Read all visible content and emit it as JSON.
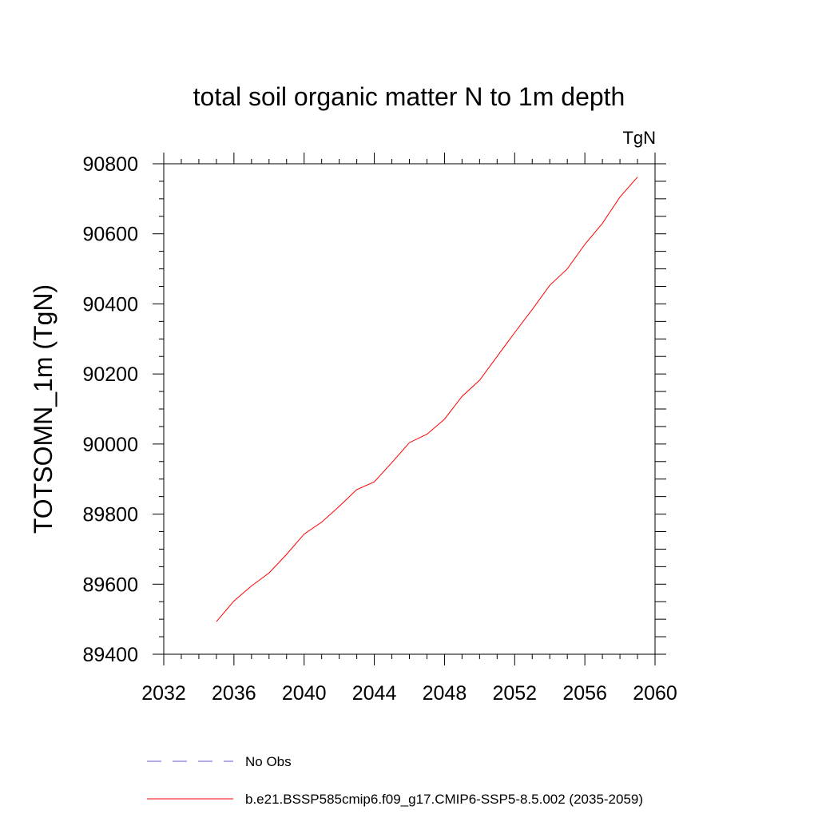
{
  "chart_data": {
    "type": "line",
    "title": "total soil organic matter N to 1m depth",
    "units_label": "TgN",
    "ylabel": "TOTSOMN_1m  (TgN)",
    "xlabel": "",
    "xlim": [
      2032,
      2060
    ],
    "ylim": [
      89400,
      90800
    ],
    "x_ticks": [
      2032,
      2036,
      2040,
      2044,
      2048,
      2052,
      2056,
      2060
    ],
    "y_ticks": [
      89400,
      89600,
      89800,
      90000,
      90200,
      90400,
      90600,
      90800
    ],
    "x_ticks_text": [
      "2032",
      "2036",
      "2040",
      "2044",
      "2048",
      "2052",
      "2056",
      "2060"
    ],
    "y_ticks_text": [
      "89400",
      "89600",
      "89800",
      "90000",
      "90200",
      "90400",
      "90600",
      "90800"
    ],
    "x_minor_step": 1,
    "y_minor_step": 50,
    "grid": false,
    "legend_position": "bottom",
    "series": [
      {
        "name": "b.e21.BSSP585cmip6.f09_g17.CMIP6-SSP5-8.5.002 (2035-2059)",
        "color": "#ff0000",
        "style": "solid",
        "x": [
          2035,
          2036,
          2037,
          2038,
          2039,
          2040,
          2041,
          2042,
          2043,
          2044,
          2045,
          2046,
          2047,
          2048,
          2049,
          2050,
          2051,
          2052,
          2053,
          2054,
          2055,
          2056,
          2057,
          2058,
          2059
        ],
        "values": [
          89493,
          89552,
          89595,
          89632,
          89685,
          89743,
          89777,
          89822,
          89870,
          89892,
          89947,
          90004,
          90028,
          90071,
          90136,
          90182,
          90250,
          90318,
          90384,
          90453,
          90500,
          90570,
          90630,
          90705,
          90762
        ]
      },
      {
        "name": "No Obs",
        "color": "#6a5acd",
        "style": "dashed",
        "x": [],
        "values": []
      }
    ]
  }
}
